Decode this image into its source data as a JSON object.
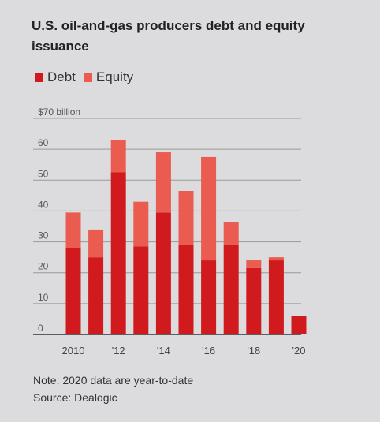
{
  "chart_data": {
    "type": "bar",
    "stacked": true,
    "title": "U.S. oil-and-gas producers debt and equity issuance",
    "xlabel": "",
    "ylabel": "",
    "ylim": [
      0,
      70
    ],
    "y_ticks": [
      0,
      10,
      20,
      30,
      40,
      50,
      60,
      70
    ],
    "y_tick_labels": [
      "0",
      "10",
      "20",
      "30",
      "40",
      "50",
      "60",
      "$70 billion"
    ],
    "categories": [
      "2010",
      "2011",
      "2012",
      "2013",
      "2014",
      "2015",
      "2016",
      "2017",
      "2018",
      "2019",
      "2020"
    ],
    "x_tick_labels": [
      "2010",
      "",
      "'12",
      "",
      "'14",
      "",
      "'16",
      "",
      "'18",
      "",
      "'20"
    ],
    "grid": true,
    "legend_position": "top-left",
    "series": [
      {
        "name": "Debt",
        "color": "#d11a1e",
        "values": [
          28,
          25,
          52.5,
          28.5,
          39.5,
          29,
          24,
          29,
          21.5,
          24,
          6
        ]
      },
      {
        "name": "Equity",
        "color": "#ea5b50",
        "values": [
          11.5,
          9,
          10.5,
          14.5,
          19.5,
          17.5,
          33.5,
          7.5,
          2.5,
          1,
          0
        ]
      }
    ],
    "notes": [
      "Note: 2020 data are year-to-date",
      "Source: Dealogic"
    ]
  }
}
